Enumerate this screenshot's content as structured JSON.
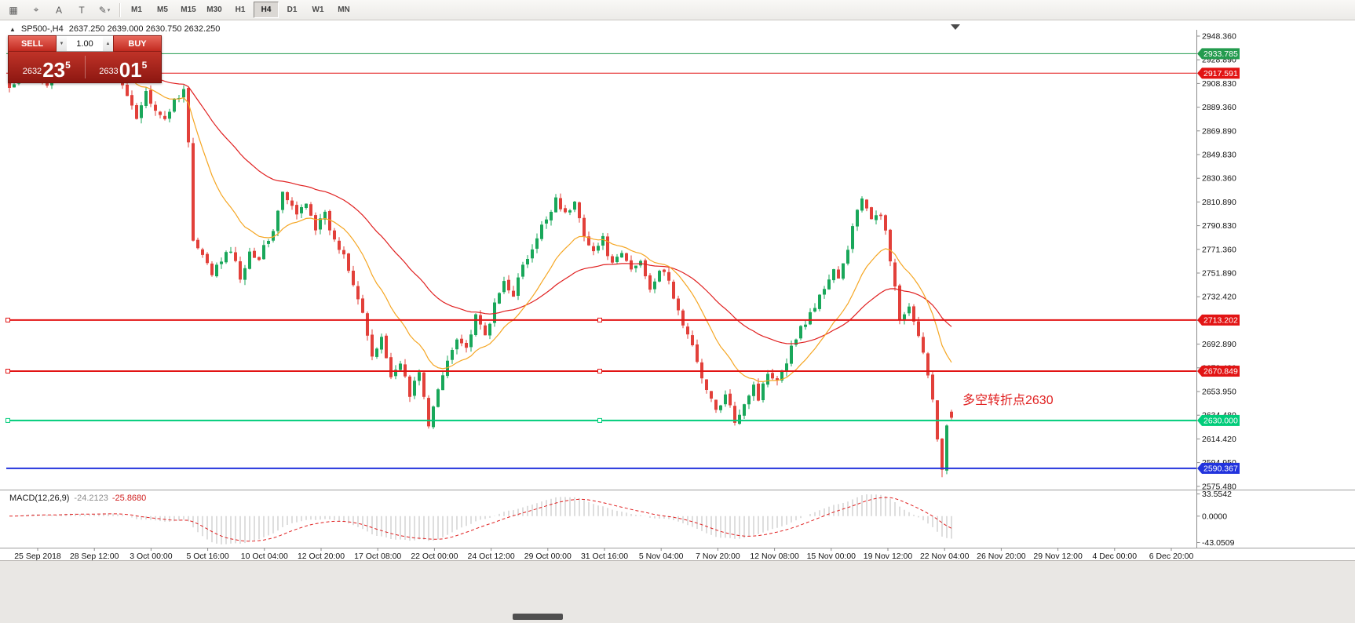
{
  "toolbar": {
    "tools": [
      {
        "name": "chart-profile",
        "glyph": "▦"
      },
      {
        "name": "crosshair",
        "glyph": "⌖"
      },
      {
        "name": "text-tool",
        "glyph": "A"
      },
      {
        "name": "trendline",
        "glyph": "T"
      },
      {
        "name": "draw-tools",
        "glyph": "✎",
        "caret": "▾"
      }
    ],
    "timeframes": [
      "M1",
      "M5",
      "M15",
      "M30",
      "H1",
      "H4",
      "D1",
      "W1",
      "MN"
    ],
    "active_timeframe": "H4"
  },
  "header": {
    "collapse_icon": "▲",
    "symbol_period": "SP500-,H4",
    "ohlc": "2637.250 2639.000 2630.750 2632.250"
  },
  "trade_widget": {
    "sell_label": "SELL",
    "buy_label": "BUY",
    "volume": "1.00",
    "spin_down": "▼",
    "spin_up": "▲",
    "sell_price": {
      "prefix": "2632",
      "big": "23",
      "sup": "5"
    },
    "buy_price": {
      "prefix": "2633",
      "big": "01",
      "sup": "5"
    },
    "colors": {
      "button_red": "#c22a20",
      "panel_red": "#8d1711"
    }
  },
  "annotation": {
    "text": "多空转折点2630",
    "color": "#e02020"
  },
  "price_axis": {
    "ticks": [
      "2948.360",
      "2928.890",
      "2908.830",
      "2889.360",
      "2869.890",
      "2849.830",
      "2830.360",
      "2810.890",
      "2790.830",
      "2771.360",
      "2751.890",
      "2732.420",
      "2712.950",
      "2692.890",
      "2673.420",
      "2653.950",
      "2634.480",
      "2614.420",
      "2594.950",
      "2575.480"
    ]
  },
  "levels": [
    {
      "label": "2933.785",
      "price": 2933.785,
      "color": "#239b4e",
      "width": 1,
      "handles": false
    },
    {
      "label": "2917.591",
      "price": 2917.591,
      "color": "#e21414",
      "width": 1,
      "handles": false
    },
    {
      "label": "2713.202",
      "price": 2713.202,
      "color": "#e21414",
      "width": 2,
      "handles": true
    },
    {
      "label": "2670.849",
      "price": 2670.849,
      "color": "#e21414",
      "width": 2,
      "handles": true
    },
    {
      "label": "2630.000",
      "price": 2630.0,
      "color": "#00cc7a",
      "width": 2,
      "handles": true
    },
    {
      "label": "2590.367",
      "price": 2590.367,
      "color": "#2233dd",
      "width": 2,
      "handles": false
    }
  ],
  "macd_panel": {
    "header": "MACD(12,26,9)",
    "value_main": "-24.2123",
    "value_signal": "-25.8680",
    "scale": [
      "33.5542",
      "0.0000",
      "-43.0509"
    ]
  },
  "time_axis": {
    "labels": [
      "25 Sep 2018",
      "28 Sep 12:00",
      "3 Oct 00:00",
      "5 Oct 16:00",
      "10 Oct 04:00",
      "12 Oct 20:00",
      "17 Oct 08:00",
      "22 Oct 00:00",
      "24 Oct 12:00",
      "29 Oct 00:00",
      "31 Oct 16:00",
      "5 Nov 04:00",
      "7 Nov 20:00",
      "12 Nov 08:00",
      "15 Nov 00:00",
      "19 Nov 12:00",
      "22 Nov 04:00",
      "26 Nov 20:00",
      "29 Nov 12:00",
      "4 Dec 00:00",
      "6 Dec 20:00"
    ]
  },
  "chart_data": {
    "type": "candlestick",
    "symbol": "SP500-",
    "timeframe": "H4",
    "last_candle": {
      "open": 2637.25,
      "high": 2639.0,
      "low": 2630.75,
      "close": 2632.25
    },
    "n_candles": 201,
    "close_waypoints": [
      [
        0,
        2905
      ],
      [
        4,
        2918
      ],
      [
        8,
        2910
      ],
      [
        12,
        2922
      ],
      [
        16,
        2915
      ],
      [
        20,
        2926
      ],
      [
        23,
        2916
      ],
      [
        25,
        2896
      ],
      [
        27,
        2882
      ],
      [
        29,
        2902
      ],
      [
        31,
        2888
      ],
      [
        33,
        2878
      ],
      [
        35,
        2896
      ],
      [
        37,
        2904
      ],
      [
        38,
        2860
      ],
      [
        39,
        2778
      ],
      [
        43,
        2752
      ],
      [
        47,
        2772
      ],
      [
        49,
        2748
      ],
      [
        51,
        2770
      ],
      [
        53,
        2765
      ],
      [
        56,
        2788
      ],
      [
        58,
        2818
      ],
      [
        61,
        2800
      ],
      [
        63,
        2812
      ],
      [
        65,
        2790
      ],
      [
        67,
        2800
      ],
      [
        69,
        2778
      ],
      [
        71,
        2768
      ],
      [
        73,
        2745
      ],
      [
        75,
        2720
      ],
      [
        77,
        2680
      ],
      [
        79,
        2700
      ],
      [
        81,
        2665
      ],
      [
        83,
        2680
      ],
      [
        85,
        2650
      ],
      [
        87,
        2672
      ],
      [
        89,
        2625
      ],
      [
        91,
        2655
      ],
      [
        93,
        2680
      ],
      [
        95,
        2700
      ],
      [
        97,
        2690
      ],
      [
        99,
        2715
      ],
      [
        101,
        2700
      ],
      [
        103,
        2725
      ],
      [
        105,
        2745
      ],
      [
        107,
        2735
      ],
      [
        109,
        2758
      ],
      [
        111,
        2770
      ],
      [
        113,
        2790
      ],
      [
        115,
        2805
      ],
      [
        116,
        2815
      ],
      [
        118,
        2800
      ],
      [
        120,
        2810
      ],
      [
        122,
        2785
      ],
      [
        124,
        2770
      ],
      [
        126,
        2780
      ],
      [
        128,
        2758
      ],
      [
        130,
        2768
      ],
      [
        132,
        2755
      ],
      [
        134,
        2762
      ],
      [
        136,
        2740
      ],
      [
        138,
        2755
      ],
      [
        140,
        2745
      ],
      [
        142,
        2720
      ],
      [
        144,
        2700
      ],
      [
        146,
        2680
      ],
      [
        148,
        2655
      ],
      [
        150,
        2638
      ],
      [
        152,
        2650
      ],
      [
        154,
        2630
      ],
      [
        156,
        2645
      ],
      [
        158,
        2660
      ],
      [
        159,
        2648
      ],
      [
        161,
        2670
      ],
      [
        163,
        2665
      ],
      [
        165,
        2680
      ],
      [
        167,
        2700
      ],
      [
        169,
        2712
      ],
      [
        171,
        2725
      ],
      [
        173,
        2740
      ],
      [
        175,
        2755
      ],
      [
        176,
        2748
      ],
      [
        178,
        2770
      ],
      [
        179,
        2790
      ],
      [
        180,
        2805
      ],
      [
        181,
        2815
      ],
      [
        183,
        2795
      ],
      [
        185,
        2800
      ],
      [
        186,
        2790
      ],
      [
        189,
        2713
      ],
      [
        191,
        2722
      ],
      [
        193,
        2698
      ],
      [
        195,
        2670
      ],
      [
        196,
        2648
      ],
      [
        197,
        2615
      ],
      [
        198,
        2592
      ],
      [
        199,
        2626
      ],
      [
        200,
        2632.25
      ]
    ],
    "overrides": {
      "198": {
        "low": 2583
      }
    },
    "up_color": "#19a75a",
    "down_color": "#e2403a",
    "ma_fast": {
      "period": 16,
      "color": "#f5a623"
    },
    "ma_slow": {
      "period": 45,
      "color": "#e02020"
    },
    "macd": {
      "fast": 12,
      "slow": 26,
      "signal": 9,
      "histogram_color": "#bdbdbd",
      "signal_color": "#e02020"
    }
  }
}
